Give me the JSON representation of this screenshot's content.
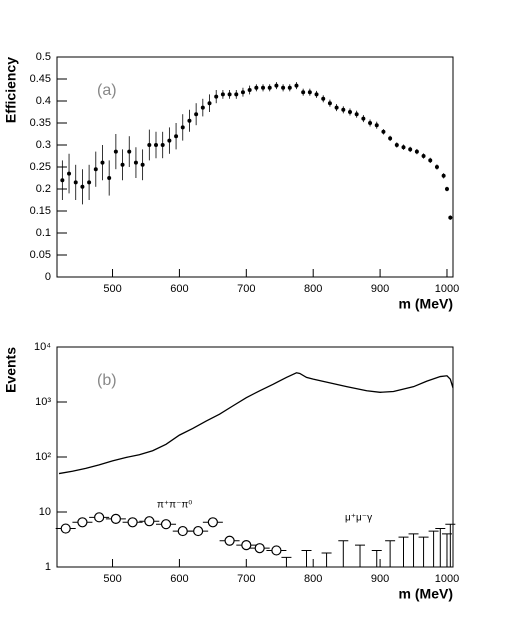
{
  "chart_data": [
    {
      "type": "scatter",
      "y_label": "Efficiency",
      "x_label": "m (MeV)",
      "annotation": "(a)",
      "xlim": [
        417,
        1009
      ],
      "xticks": [
        500,
        600,
        700,
        800,
        900,
        1000
      ],
      "ylim": [
        0,
        0.5
      ],
      "yticks": [
        0,
        0.05,
        0.1,
        0.15,
        0.2,
        0.25,
        0.3,
        0.35,
        0.4,
        0.45,
        0.5
      ],
      "log": false,
      "color": "#000000",
      "x": [
        425,
        435,
        445,
        455,
        465,
        475,
        485,
        495,
        505,
        515,
        525,
        535,
        545,
        555,
        565,
        575,
        585,
        595,
        605,
        615,
        625,
        635,
        645,
        655,
        665,
        675,
        685,
        695,
        705,
        715,
        725,
        735,
        745,
        755,
        765,
        775,
        785,
        795,
        805,
        815,
        825,
        835,
        845,
        855,
        865,
        875,
        885,
        895,
        905,
        915,
        925,
        935,
        945,
        955,
        965,
        975,
        985,
        995,
        1000,
        1005
      ],
      "values": [
        0.22,
        0.235,
        0.215,
        0.205,
        0.215,
        0.245,
        0.26,
        0.225,
        0.285,
        0.255,
        0.285,
        0.26,
        0.255,
        0.3,
        0.3,
        0.3,
        0.31,
        0.32,
        0.34,
        0.355,
        0.37,
        0.385,
        0.395,
        0.41,
        0.415,
        0.415,
        0.415,
        0.42,
        0.425,
        0.43,
        0.43,
        0.43,
        0.435,
        0.43,
        0.43,
        0.435,
        0.42,
        0.42,
        0.415,
        0.405,
        0.395,
        0.385,
        0.38,
        0.375,
        0.37,
        0.36,
        0.35,
        0.345,
        0.33,
        0.315,
        0.3,
        0.295,
        0.29,
        0.285,
        0.275,
        0.265,
        0.25,
        0.23,
        0.2,
        0.135
      ],
      "errors": [
        0.045,
        0.045,
        0.04,
        0.04,
        0.04,
        0.04,
        0.04,
        0.04,
        0.04,
        0.035,
        0.035,
        0.035,
        0.035,
        0.035,
        0.03,
        0.03,
        0.03,
        0.03,
        0.03,
        0.025,
        0.025,
        0.02,
        0.02,
        0.015,
        0.01,
        0.01,
        0.01,
        0.01,
        0.01,
        0.008,
        0.008,
        0.008,
        0.008,
        0.008,
        0.008,
        0.008,
        0.008,
        0.008,
        0.008,
        0.008,
        0.008,
        0.008,
        0.008,
        0.008,
        0.008,
        0.008,
        0.008,
        0.008,
        0.006,
        0.006,
        0.006,
        0.006,
        0.006,
        0.006,
        0.006,
        0.006,
        0.006,
        0.006,
        0.005,
        0.005
      ]
    },
    {
      "type": "line",
      "y_label": "Events",
      "x_label": "m (MeV)",
      "annotation": "(b)",
      "xlim": [
        417,
        1009
      ],
      "xticks": [
        500,
        600,
        700,
        800,
        900,
        1000
      ],
      "ylim": [
        1,
        10000
      ],
      "log": true,
      "yticks": [
        1,
        10,
        {
          "value": 100,
          "label": "10²"
        },
        {
          "value": 1000,
          "label": "10³"
        },
        {
          "value": 10000,
          "label": "10⁴"
        }
      ],
      "series": [
        {
          "marker": "none",
          "color": "#000000",
          "x": [
            420,
            440,
            460,
            480,
            500,
            520,
            540,
            560,
            580,
            600,
            620,
            640,
            660,
            680,
            700,
            720,
            740,
            760,
            775,
            780,
            790,
            800,
            820,
            850,
            880,
            900,
            920,
            950,
            970,
            990,
            1000,
            1005,
            1009
          ],
          "values": [
            50,
            55,
            62,
            72,
            85,
            98,
            110,
            130,
            170,
            250,
            330,
            450,
            600,
            850,
            1200,
            1600,
            2100,
            2800,
            3400,
            3300,
            2800,
            2600,
            2300,
            1900,
            1600,
            1500,
            1550,
            1900,
            2400,
            2900,
            3000,
            2600,
            1800
          ]
        },
        {
          "name": "π⁺π⁻π⁰",
          "marker": "circle",
          "color": "#000000",
          "x": [
            430,
            455,
            480,
            505,
            530,
            555,
            580,
            605,
            628,
            650,
            675,
            700,
            720,
            745
          ],
          "values": [
            5,
            6.5,
            8,
            7.5,
            6.5,
            6.8,
            6,
            4.5,
            4.5,
            6.5,
            3,
            2.5,
            2.2,
            2
          ]
        },
        {
          "name": "μ⁺μ⁻γ",
          "marker": "cross",
          "color": "#000000",
          "x": [
            760,
            790,
            820,
            845,
            870,
            895,
            915,
            935,
            950,
            965,
            980,
            990,
            1000,
            1005
          ],
          "values": [
            1.5,
            2,
            1.8,
            3,
            2.5,
            2,
            3,
            3.5,
            4,
            3.5,
            4.5,
            5,
            4,
            6
          ]
        }
      ]
    }
  ]
}
